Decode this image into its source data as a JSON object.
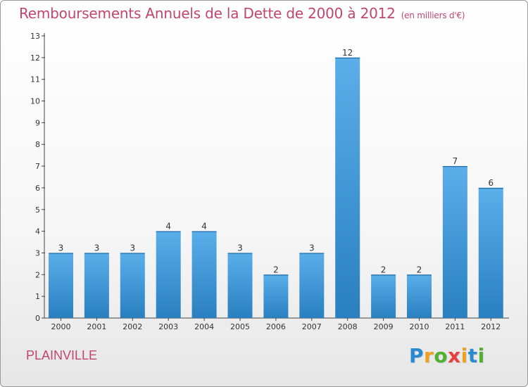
{
  "header": {
    "title": "Remboursements Annuels de la Dette de 2000 à 2012",
    "subtitle": "(en milliers d'€)"
  },
  "footer": {
    "commune": "PLAINVILLE",
    "logo": {
      "text": "Proxiti",
      "letters": [
        "P",
        "r",
        "o",
        "x",
        "i",
        "t",
        "i"
      ],
      "colors": [
        "#2a8ad0",
        "#f0a020",
        "#50b030",
        "#e84040",
        "#f0a020",
        "#2a8ad0",
        "#50b030"
      ]
    }
  },
  "chart_data": {
    "type": "bar",
    "title": "Remboursements Annuels de la Dette de 2000 à 2012",
    "subtitle": "(en milliers d'€)",
    "categories": [
      "2000",
      "2001",
      "2002",
      "2003",
      "2004",
      "2005",
      "2006",
      "2007",
      "2008",
      "2009",
      "2010",
      "2011",
      "2012"
    ],
    "values": [
      3,
      3,
      3,
      4,
      4,
      3,
      2,
      3,
      12,
      2,
      2,
      7,
      6
    ],
    "xlabel": "",
    "ylabel": "",
    "ylim": [
      0,
      13
    ],
    "yticks": [
      0,
      1,
      2,
      3,
      4,
      5,
      6,
      7,
      8,
      9,
      10,
      11,
      12,
      13
    ],
    "grid": false,
    "data_labels": true,
    "colors": {
      "bar_top": "#5aaeea",
      "bar_bottom": "#2a7fc0",
      "title": "#c0466e",
      "axis": "#333333"
    }
  }
}
